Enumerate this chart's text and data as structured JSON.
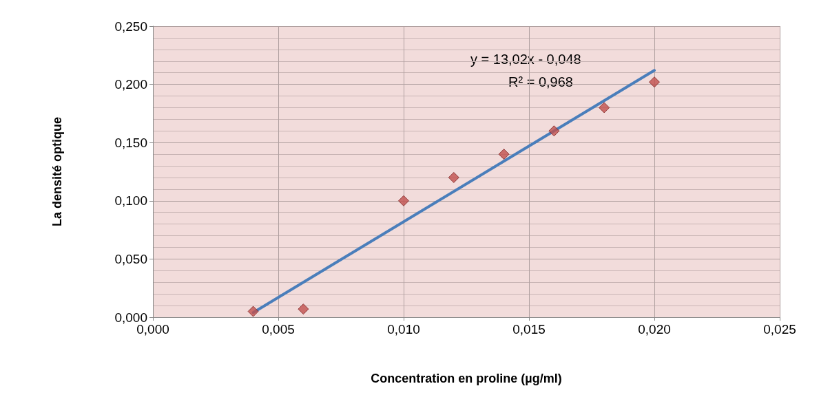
{
  "chart_data": {
    "type": "scatter",
    "xlabel": "Concentration en proline (µg/ml)",
    "ylabel": "La densité optique",
    "x": [
      0.004,
      0.006,
      0.01,
      0.012,
      0.014,
      0.016,
      0.018,
      0.02
    ],
    "series": [
      {
        "color": "#c0504d",
        "marker": "diamond",
        "values": [
          0.005,
          0.007,
          0.1,
          0.12,
          0.14,
          0.16,
          0.18,
          0.202
        ]
      },
      {
        "type": "line",
        "color": "#4a7ebb",
        "marker": "none",
        "line_style": "solid",
        "x": [
          0.004,
          0.02
        ],
        "values": [
          0.004,
          0.212
        ]
      }
    ],
    "xlim": [
      0,
      0.025
    ],
    "ylim": [
      0,
      0.25
    ],
    "xticks": [
      {
        "value": 0,
        "label": "0,000"
      },
      {
        "value": 0.005,
        "label": "0,005"
      },
      {
        "value": 0.01,
        "label": "0,010"
      },
      {
        "value": 0.015,
        "label": "0,015"
      },
      {
        "value": 0.02,
        "label": "0,020"
      },
      {
        "value": 0.025,
        "label": "0,025"
      }
    ],
    "yticks": [
      {
        "value": 0,
        "label": "0,000"
      },
      {
        "value": 0.05,
        "label": "0,050"
      },
      {
        "value": 0.1,
        "label": "0,100"
      },
      {
        "value": 0.15,
        "label": "0,150"
      },
      {
        "value": 0.2,
        "label": "0,200"
      },
      {
        "value": 0.25,
        "label": "0,250"
      }
    ],
    "grid": true,
    "annotations": [
      "y = 13,02x - 0,048",
      "R² = 0,968"
    ]
  }
}
